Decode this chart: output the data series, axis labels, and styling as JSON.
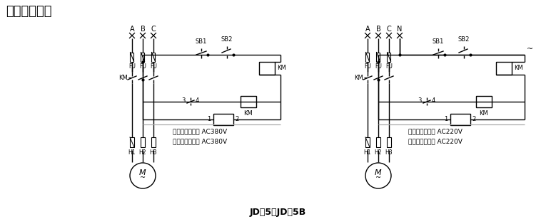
{
  "title": "应用电路举例",
  "subtitle": "JD）5、JD）5B",
  "subtitle2": "JD－5、JD－5B",
  "bg_color": "#ffffff",
  "line_color": "#000000",
  "d1": {
    "abc": [
      "A",
      "B",
      "C"
    ],
    "fu": [
      "FU",
      "FU",
      "FU"
    ],
    "hx": [
      "H1",
      "H2",
      "H3"
    ],
    "note1": "保护器工作电压 AC380V",
    "note2": "交流接触器电压 AC380V",
    "vx": [
      185,
      200,
      215
    ]
  },
  "d2": {
    "abcn": [
      "A",
      "B",
      "C",
      "N"
    ],
    "fu": [
      "FU",
      "FU",
      "FU"
    ],
    "hx": [
      "H1",
      "H2",
      "H3"
    ],
    "note1": "保护器工作电压 AC220V",
    "note2": "交流接触器电压 AC220V",
    "vx": [
      515,
      530,
      545
    ],
    "nx": 560
  }
}
